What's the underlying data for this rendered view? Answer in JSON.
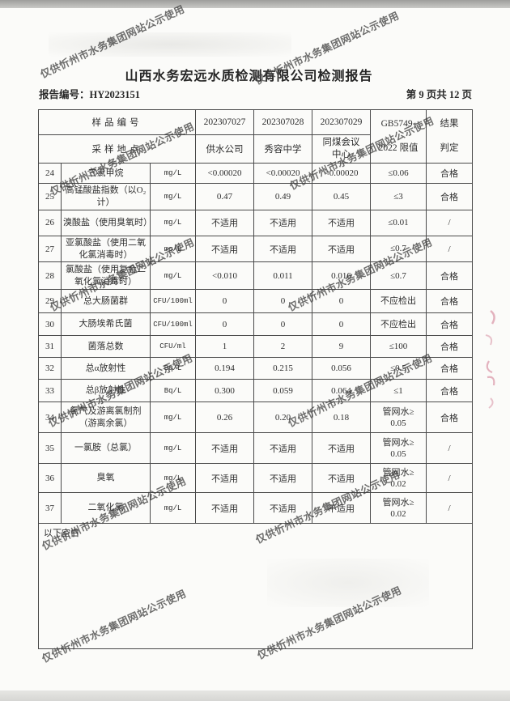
{
  "watermark": {
    "text": "仅供忻州市水务集团网站公示使用"
  },
  "header": {
    "title": "山西水务宏远水质检测有限公司检测报告",
    "report_no": "报告编号：HY2023151",
    "page_info": "第 9 页共 12 页"
  },
  "table": {
    "head": {
      "row1_label": "样品编号",
      "row2_label": "采样地点",
      "sample_ids": [
        "202307027",
        "202307028",
        "202307029"
      ],
      "locations": [
        "供水公司",
        "秀容中学",
        "同煤会议\n中心"
      ],
      "limit_header": "GB5749-\n2022 限值",
      "result_header": "结果\n判定"
    },
    "rows": [
      {
        "no": "24",
        "name": "三氯甲烷",
        "unit": "mg/L",
        "v1": "<0.00020",
        "v2": "<0.00020",
        "v3": "<0.00020",
        "limit": "≤0.06",
        "result": "合格"
      },
      {
        "no": "25",
        "name": "高锰酸盐指数（以O₂计）",
        "unit": "mg/L",
        "v1": "0.47",
        "v2": "0.49",
        "v3": "0.45",
        "limit": "≤3",
        "result": "合格"
      },
      {
        "no": "26",
        "name": "溴酸盐（使用臭氧时）",
        "unit": "mg/L",
        "v1": "不适用",
        "v2": "不适用",
        "v3": "不适用",
        "limit": "≤0.01",
        "result": "/"
      },
      {
        "no": "27",
        "name": "亚氯酸盐（使用二氧化氯消毒时）",
        "unit": "mg/L",
        "v1": "不适用",
        "v2": "不适用",
        "v3": "不适用",
        "limit": "≤0.7",
        "result": "/"
      },
      {
        "no": "28",
        "name": "氯酸盐（使用复合二氧化氯消毒时）",
        "unit": "mg/L",
        "v1": "<0.010",
        "v2": "0.011",
        "v3": "0.016",
        "limit": "≤0.7",
        "result": "合格"
      },
      {
        "no": "29",
        "name": "总大肠菌群",
        "unit": "CFU/100ml",
        "v1": "0",
        "v2": "0",
        "v3": "0",
        "limit": "不应检出",
        "result": "合格"
      },
      {
        "no": "30",
        "name": "大肠埃希氏菌",
        "unit": "CFU/100ml",
        "v1": "0",
        "v2": "0",
        "v3": "0",
        "limit": "不应检出",
        "result": "合格"
      },
      {
        "no": "31",
        "name": "菌落总数",
        "unit": "CFU/ml",
        "v1": "1",
        "v2": "2",
        "v3": "9",
        "limit": "≤100",
        "result": "合格"
      },
      {
        "no": "32",
        "name": "总α放射性",
        "unit": "Bq/L",
        "v1": "0.194",
        "v2": "0.215",
        "v3": "0.056",
        "limit": "≤0.5",
        "result": "合格"
      },
      {
        "no": "33",
        "name": "总β放射性",
        "unit": "Bq/L",
        "v1": "0.300",
        "v2": "0.059",
        "v3": "0.064",
        "limit": "≤1",
        "result": "合格"
      },
      {
        "no": "34",
        "name": "氯气及游离氯制剂（游离余氯）",
        "unit": "mg/L",
        "v1": "0.26",
        "v2": "0.20",
        "v3": "0.18",
        "limit": "管网水≥\n0.05",
        "result": "合格"
      },
      {
        "no": "35",
        "name": "一氯胺（总氯）",
        "unit": "mg/L",
        "v1": "不适用",
        "v2": "不适用",
        "v3": "不适用",
        "limit": "管网水≥\n0.05",
        "result": "/"
      },
      {
        "no": "36",
        "name": "臭氧",
        "unit": "mg/L",
        "v1": "不适用",
        "v2": "不适用",
        "v3": "不适用",
        "limit": "管网水≥\n0.02",
        "result": "/"
      },
      {
        "no": "37",
        "name": "二氧化氯",
        "unit": "mg/L",
        "v1": "不适用",
        "v2": "不适用",
        "v3": "不适用",
        "limit": "管网水≥\n0.02",
        "result": "/"
      }
    ],
    "footer_note": "以下空白"
  }
}
